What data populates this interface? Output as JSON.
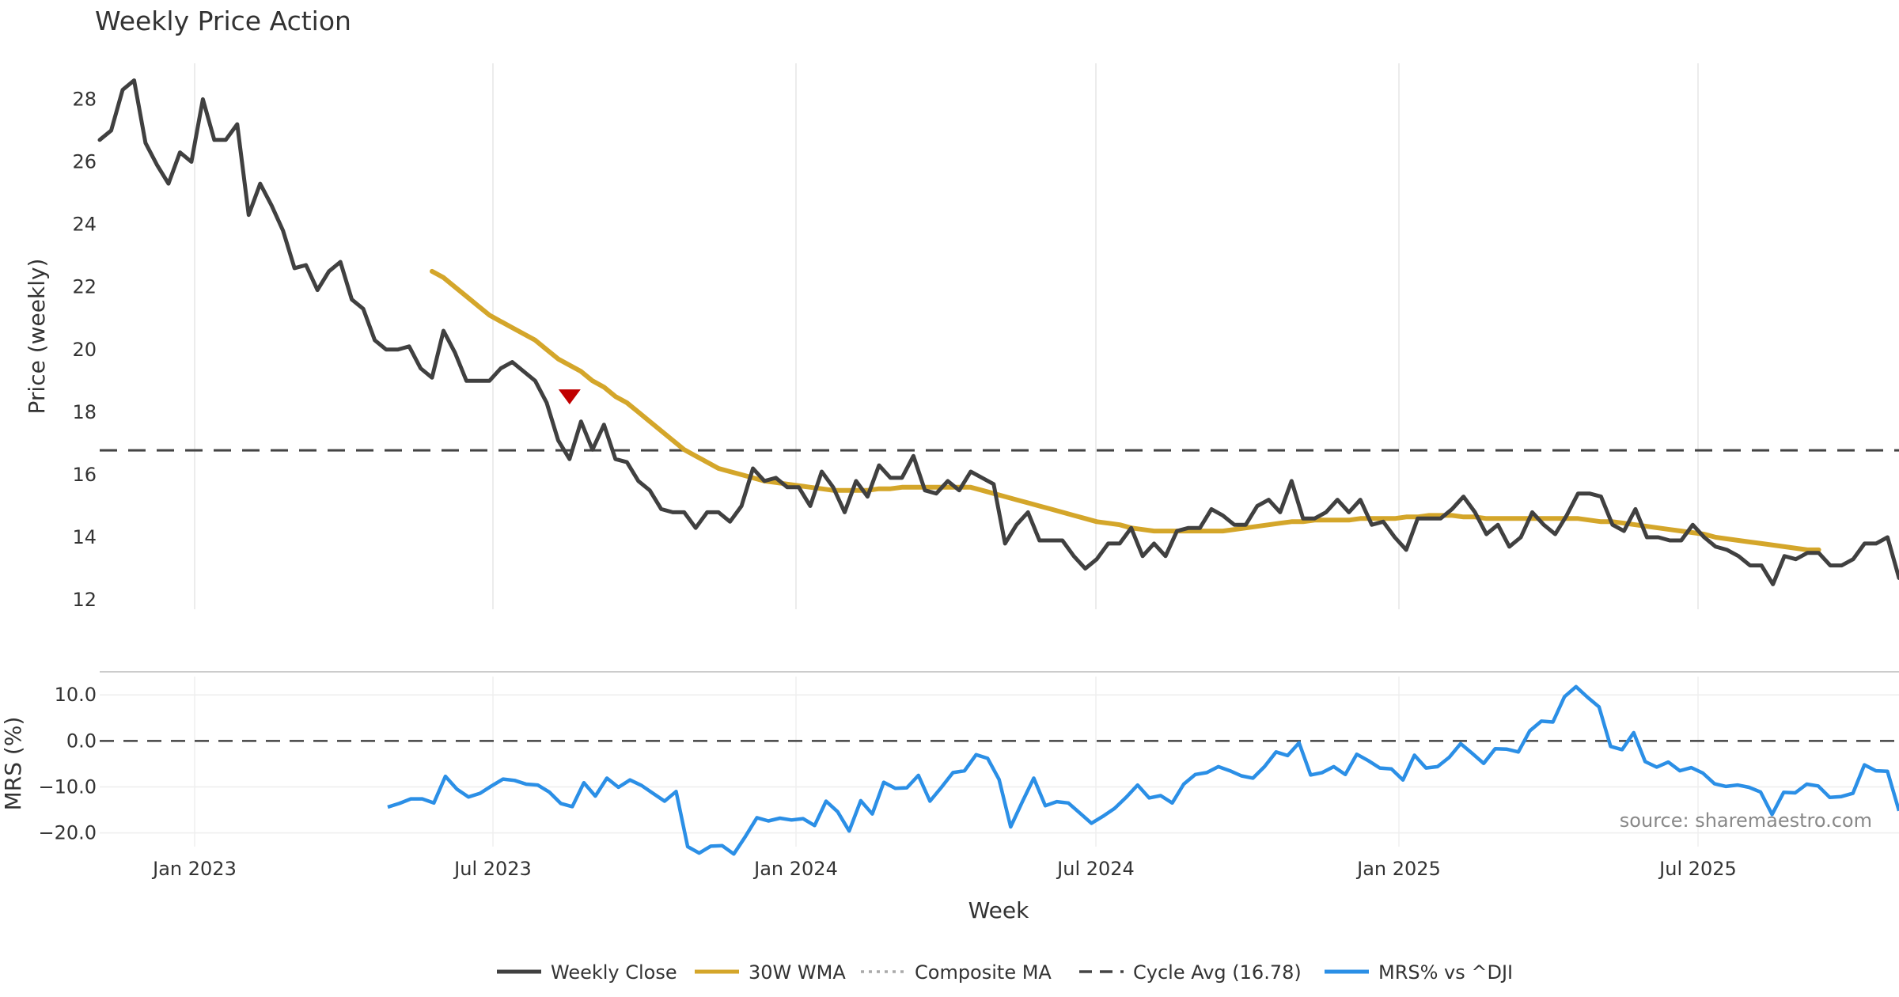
{
  "chart_data": {
    "type": "line",
    "title": "Weekly Price Action",
    "xlabel": "Week",
    "x_ticks": [
      "Jan 2023",
      "Jul 2023",
      "Jan 2024",
      "Jul 2024",
      "Jan 2025",
      "Jul 2025"
    ],
    "price_panel": {
      "ylabel": "Price (weekly)",
      "ylim": [
        11.7,
        29.4
      ],
      "y_ticks": [
        12,
        14,
        16,
        18,
        20,
        22,
        24,
        26,
        28
      ],
      "series": [
        {
          "name": "Weekly Close",
          "color": "#404040",
          "style": "solid",
          "values": [
            26.7,
            27.0,
            28.3,
            28.6,
            26.6,
            25.9,
            25.3,
            26.3,
            26.0,
            28.0,
            26.7,
            26.7,
            27.2,
            24.3,
            25.3,
            24.6,
            23.8,
            22.6,
            22.7,
            21.9,
            22.5,
            22.8,
            21.6,
            21.3,
            20.3,
            20.0,
            20.0,
            20.1,
            19.4,
            19.1,
            20.6,
            19.9,
            19.0,
            19.0,
            19.0,
            19.4,
            19.6,
            19.3,
            19.0,
            18.3,
            17.1,
            16.5,
            17.7,
            16.8,
            17.6,
            16.5,
            16.4,
            15.8,
            15.5,
            14.9,
            14.8,
            14.8,
            14.3,
            14.8,
            14.8,
            14.5,
            15.0,
            16.2,
            15.8,
            15.9,
            15.6,
            15.6,
            15.0,
            16.1,
            15.6,
            14.8,
            15.8,
            15.3,
            16.3,
            15.9,
            15.9,
            16.6,
            15.5,
            15.4,
            15.8,
            15.5,
            16.1,
            15.9,
            15.7,
            13.8,
            14.4,
            14.8,
            13.9,
            13.9,
            13.9,
            13.4,
            13.0,
            13.3,
            13.8,
            13.8,
            14.3,
            13.4,
            13.8,
            13.4,
            14.2,
            14.3,
            14.3,
            14.9,
            14.7,
            14.4,
            14.4,
            15.0,
            15.2,
            14.8,
            15.8,
            14.6,
            14.6,
            14.8,
            15.2,
            14.8,
            15.2,
            14.4,
            14.5,
            14.0,
            13.6,
            14.6,
            14.6,
            14.6,
            14.9,
            15.3,
            14.8,
            14.1,
            14.4,
            13.7,
            14.0,
            14.8,
            14.4,
            14.1,
            14.7,
            15.4,
            15.4,
            15.3,
            14.4,
            14.2,
            14.9,
            14.0,
            14.0,
            13.9,
            13.9,
            14.4,
            14.0,
            13.7,
            13.6,
            13.4,
            13.1,
            13.1,
            12.5,
            13.4,
            13.3,
            13.5,
            13.5,
            13.1,
            13.1,
            13.3,
            13.8,
            13.8,
            14.0,
            12.7
          ]
        },
        {
          "name": "30W WMA",
          "color": "#d4a62a",
          "style": "solid",
          "values": [
            null,
            null,
            null,
            null,
            null,
            null,
            null,
            null,
            null,
            null,
            null,
            null,
            null,
            null,
            null,
            null,
            null,
            null,
            null,
            null,
            null,
            null,
            null,
            null,
            null,
            null,
            null,
            null,
            null,
            22.5,
            22.3,
            22.0,
            21.7,
            21.4,
            21.1,
            20.9,
            20.7,
            20.5,
            20.3,
            20.0,
            19.7,
            19.5,
            19.3,
            19.0,
            18.8,
            18.5,
            18.3,
            18.0,
            17.7,
            17.4,
            17.1,
            16.8,
            16.6,
            16.4,
            16.2,
            16.1,
            16.0,
            15.9,
            15.8,
            15.75,
            15.7,
            15.65,
            15.6,
            15.55,
            15.5,
            15.5,
            15.5,
            15.5,
            15.55,
            15.55,
            15.6,
            15.6,
            15.6,
            15.6,
            15.6,
            15.6,
            15.6,
            15.5,
            15.4,
            15.3,
            15.2,
            15.1,
            15.0,
            14.9,
            14.8,
            14.7,
            14.6,
            14.5,
            14.45,
            14.4,
            14.3,
            14.25,
            14.2,
            14.2,
            14.2,
            14.2,
            14.2,
            14.2,
            14.2,
            14.25,
            14.3,
            14.35,
            14.4,
            14.45,
            14.5,
            14.5,
            14.55,
            14.55,
            14.55,
            14.55,
            14.6,
            14.6,
            14.6,
            14.6,
            14.65,
            14.65,
            14.7,
            14.7,
            14.7,
            14.65,
            14.65,
            14.6,
            14.6,
            14.6,
            14.6,
            14.6,
            14.6,
            14.6,
            14.6,
            14.6,
            14.55,
            14.5,
            14.5,
            14.45,
            14.4,
            14.35,
            14.3,
            14.25,
            14.2,
            14.15,
            14.1,
            14.0,
            13.95,
            13.9,
            13.85,
            13.8,
            13.75,
            13.7,
            13.65,
            13.6,
            13.6
          ]
        },
        {
          "name": "Composite MA",
          "color": "#aaaaaa",
          "style": "dotted",
          "values": [
            null,
            null,
            null,
            null,
            null,
            null,
            null,
            null,
            null,
            null,
            null,
            null,
            null,
            null,
            null,
            null,
            null,
            null,
            null,
            null,
            null,
            null,
            null,
            null,
            null,
            null,
            null,
            null,
            null,
            null,
            null,
            null,
            null,
            null,
            null,
            null,
            null,
            null,
            null,
            null,
            null,
            null,
            null,
            null,
            null,
            null,
            null,
            null,
            null,
            null,
            null,
            null,
            null,
            null,
            null,
            null,
            null,
            null,
            null,
            null,
            null,
            null,
            null,
            null,
            null,
            null,
            null,
            null,
            null,
            null,
            null,
            null,
            null,
            null,
            null,
            null,
            null,
            null,
            null,
            null,
            null,
            null,
            null,
            null,
            null,
            null,
            null,
            null,
            null,
            null,
            null,
            null,
            null,
            null,
            null,
            null,
            null,
            null,
            null,
            null,
            null,
            null,
            null,
            null,
            null,
            null,
            null,
            null,
            null,
            null,
            null,
            null,
            null,
            null,
            null,
            null,
            null,
            null,
            null,
            null,
            null,
            null,
            null,
            null,
            null,
            null,
            null,
            null,
            null,
            null,
            null,
            null,
            null,
            null,
            null,
            null,
            null,
            null,
            null,
            null,
            null,
            null,
            null,
            null,
            null,
            null,
            null,
            null,
            null,
            null,
            null,
            null,
            null,
            null
          ]
        },
        {
          "name": "Cycle Avg (16.78)",
          "color": "#444444",
          "style": "dashed",
          "constant": 16.78
        }
      ],
      "marker": {
        "type": "down-triangle",
        "color": "#c00000",
        "index": 41,
        "value": 18.5
      }
    },
    "mrs_panel": {
      "ylabel": "MRS (%)",
      "ylim": [
        -23,
        14
      ],
      "y_ticks": [
        10.0,
        0.0,
        -10.0,
        -20.0
      ],
      "y_tick_labels": [
        "10.0",
        "0.0",
        "−10.0",
        "−20.0"
      ],
      "zero_line": true,
      "series": [
        {
          "name": "MRS% vs ^DJI",
          "color": "#2b8fe6",
          "style": "solid",
          "values": [
            -14.4,
            -13.6,
            -12.6,
            -12.6,
            -13.5,
            -7.7,
            -10.5,
            -12.2,
            -11.4,
            -9.8,
            -8.3,
            -8.6,
            -9.4,
            -9.6,
            -11.1,
            -13.6,
            -14.3,
            -9.1,
            -12.0,
            -8.1,
            -10.1,
            -8.5,
            -9.7,
            -11.4,
            -13.1,
            -11.0,
            -23.0,
            -24.4,
            -22.9,
            -22.8,
            -24.6,
            -20.8,
            -16.7,
            -17.4,
            -16.8,
            -17.2,
            -16.9,
            -18.4,
            -13.1,
            -15.4,
            -19.6,
            -13.0,
            -15.9,
            -9.0,
            -10.3,
            -10.2,
            -7.5,
            -13.1,
            -10.1,
            -6.9,
            -6.5,
            -3.0,
            -3.8,
            -8.4,
            -18.7,
            -13.3,
            -8.1,
            -14.1,
            -13.2,
            -13.5,
            -15.7,
            -17.9,
            -16.4,
            -14.7,
            -12.3,
            -9.6,
            -12.4,
            -11.9,
            -13.5,
            -9.4,
            -7.3,
            -6.9,
            -5.6,
            -6.5,
            -7.6,
            -8.1,
            -5.6,
            -2.4,
            -3.2,
            -0.4,
            -7.4,
            -6.9,
            -5.6,
            -7.3,
            -2.9,
            -4.3,
            -5.9,
            -6.1,
            -8.5,
            -3.1,
            -5.9,
            -5.6,
            -3.6,
            -0.6,
            -2.7,
            -4.9,
            -1.7,
            -1.8,
            -2.4,
            2.2,
            4.3,
            4.1,
            9.6,
            11.8,
            9.5,
            7.4,
            -1.2,
            -1.9,
            1.8,
            -4.5,
            -5.7,
            -4.6,
            -6.5,
            -5.8,
            -7.0,
            -9.3,
            -9.9,
            -9.6,
            -10.1,
            -11.1,
            -16.0,
            -11.2,
            -11.3,
            -9.4,
            -9.8,
            -12.3,
            -12.1,
            -11.4,
            -5.2,
            -6.5,
            -6.6,
            -15.2
          ]
        }
      ]
    },
    "legend": {
      "placement": "bottom-center",
      "entries": [
        {
          "label": "Weekly Close",
          "color": "#404040",
          "style": "solid"
        },
        {
          "label": "30W WMA",
          "color": "#d4a62a",
          "style": "solid"
        },
        {
          "label": "Composite MA",
          "color": "#aaaaaa",
          "style": "dotted"
        },
        {
          "label": "Cycle Avg (16.78)",
          "color": "#444444",
          "style": "dashed"
        },
        {
          "label": "MRS% vs ^DJI",
          "color": "#2b8fe6",
          "style": "solid"
        }
      ]
    },
    "annotation": "source: sharemaestro.com"
  }
}
